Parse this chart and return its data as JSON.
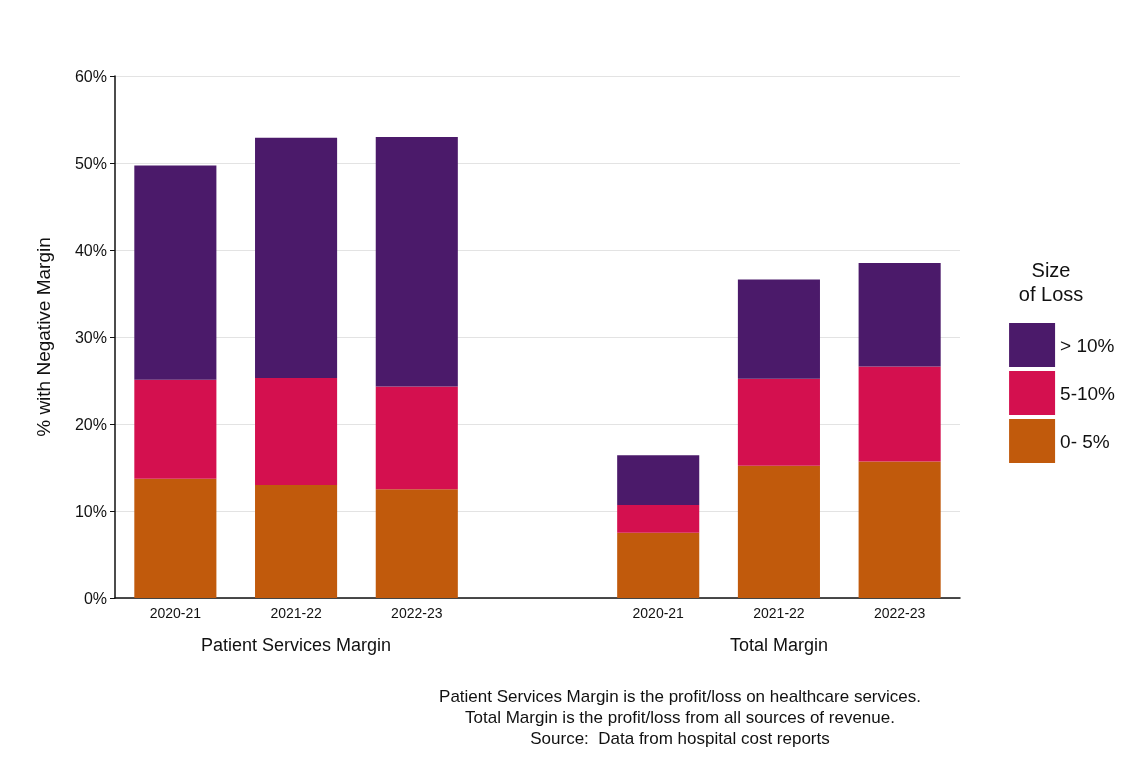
{
  "chart_data": {
    "type": "bar",
    "stacked": true,
    "ylabel": "% with Negative Margin",
    "legend_title": "Size\nof Loss",
    "legend": "right",
    "categories": [
      "2020-21",
      "2021-22",
      "2022-23",
      null,
      "2020-21",
      "2021-22",
      "2022-23"
    ],
    "series": [
      {
        "name": "0- 5%",
        "color": "#c15a0c",
        "values": [
          13.7,
          13.0,
          12.5,
          null,
          7.5,
          15.2,
          15.7
        ]
      },
      {
        "name": "5-10%",
        "color": "#d4104f",
        "values": [
          11.4,
          12.3,
          11.8,
          null,
          3.2,
          10.0,
          10.9
        ]
      },
      {
        "name": "> 10%",
        "color": "#4b1a6a",
        "values": [
          24.6,
          27.6,
          28.7,
          null,
          5.7,
          11.4,
          11.9
        ]
      }
    ],
    "ylim": [
      0,
      60
    ],
    "yticks": [
      {
        "value": 0,
        "label": "0%"
      },
      {
        "value": 10,
        "label": "10%"
      },
      {
        "value": 20,
        "label": "20%"
      },
      {
        "value": 30,
        "label": "30%"
      },
      {
        "value": 40,
        "label": "40%"
      },
      {
        "value": 50,
        "label": "50%"
      },
      {
        "value": 60,
        "label": "60%"
      }
    ],
    "grid": "y",
    "annotations": [
      "Patient Services Margin",
      "Total Margin",
      "Patient Services Margin is the profit/loss on healthcare services.",
      "Total Margin is the profit/loss from all sources of revenue.",
      "Source:  Data from hospital cost reports"
    ]
  }
}
